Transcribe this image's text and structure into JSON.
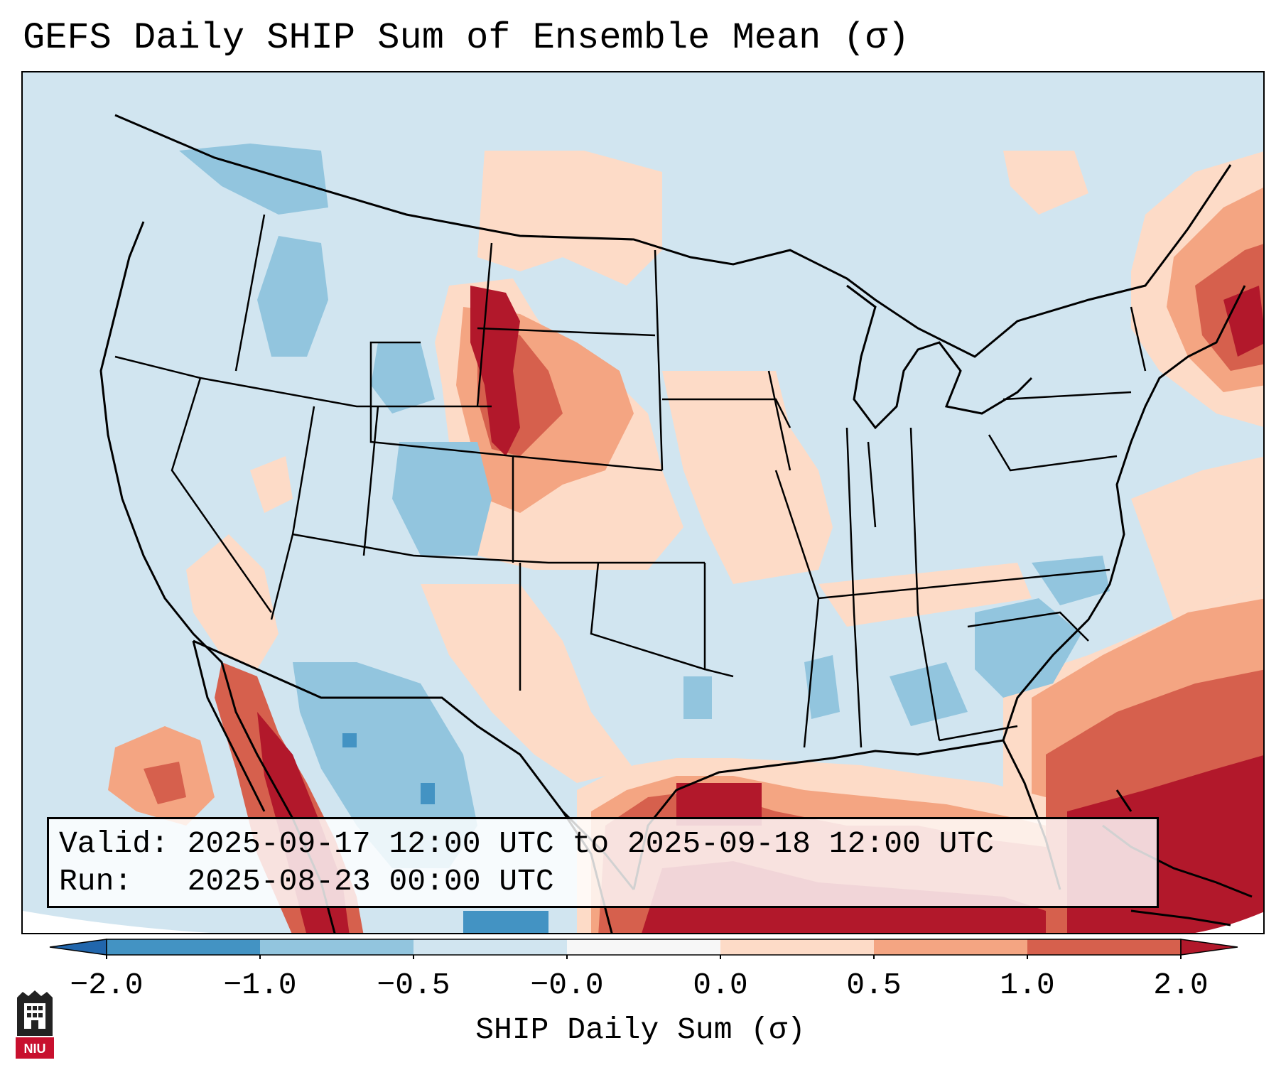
{
  "title": "GEFS Daily SHIP Sum of Ensemble Mean (σ)",
  "info_box": {
    "valid_line": "Valid: 2025-09-17 12:00 UTC to 2025-09-18 12:00 UTC",
    "run_line": "Run:   2025-08-23 00:00 UTC"
  },
  "colorbar": {
    "label": "SHIP Daily Sum (σ)",
    "ticks": [
      "−2.0",
      "−1.0",
      "−0.5",
      "−0.0",
      "0.0",
      "0.5",
      "1.0",
      "2.0"
    ],
    "bins": [
      {
        "range": "< -2.0",
        "color": "#2166ac"
      },
      {
        "range": "-2.0 to -1.0",
        "color": "#4393c3"
      },
      {
        "range": "-1.0 to -0.5",
        "color": "#92c5de"
      },
      {
        "range": "-0.5 to -0.0",
        "color": "#d1e5f0"
      },
      {
        "range": "-0.0 to 0.0",
        "color": "#f7f7f7"
      },
      {
        "range": "0.0 to 0.5",
        "color": "#fddbc7"
      },
      {
        "range": "0.5 to 1.0",
        "color": "#f4a582"
      },
      {
        "range": "1.0 to 2.0",
        "color": "#d6604d"
      },
      {
        "range": "> 2.0",
        "color": "#b2182b"
      }
    ]
  },
  "map": {
    "region": "Contiguous United States, northern Mexico, Gulf of Mexico and Caribbean",
    "background_color": "#d1e5f0",
    "high_regions": [
      "Gulf of Mexico",
      "Caribbean",
      "Western Mexico coast",
      "Northern Plains",
      "New England"
    ],
    "low_regions": [
      "Southwest",
      "Southeast US",
      "Idaho/Montana"
    ]
  },
  "logo": {
    "text": "NIU",
    "icon": "niu-building-icon"
  }
}
